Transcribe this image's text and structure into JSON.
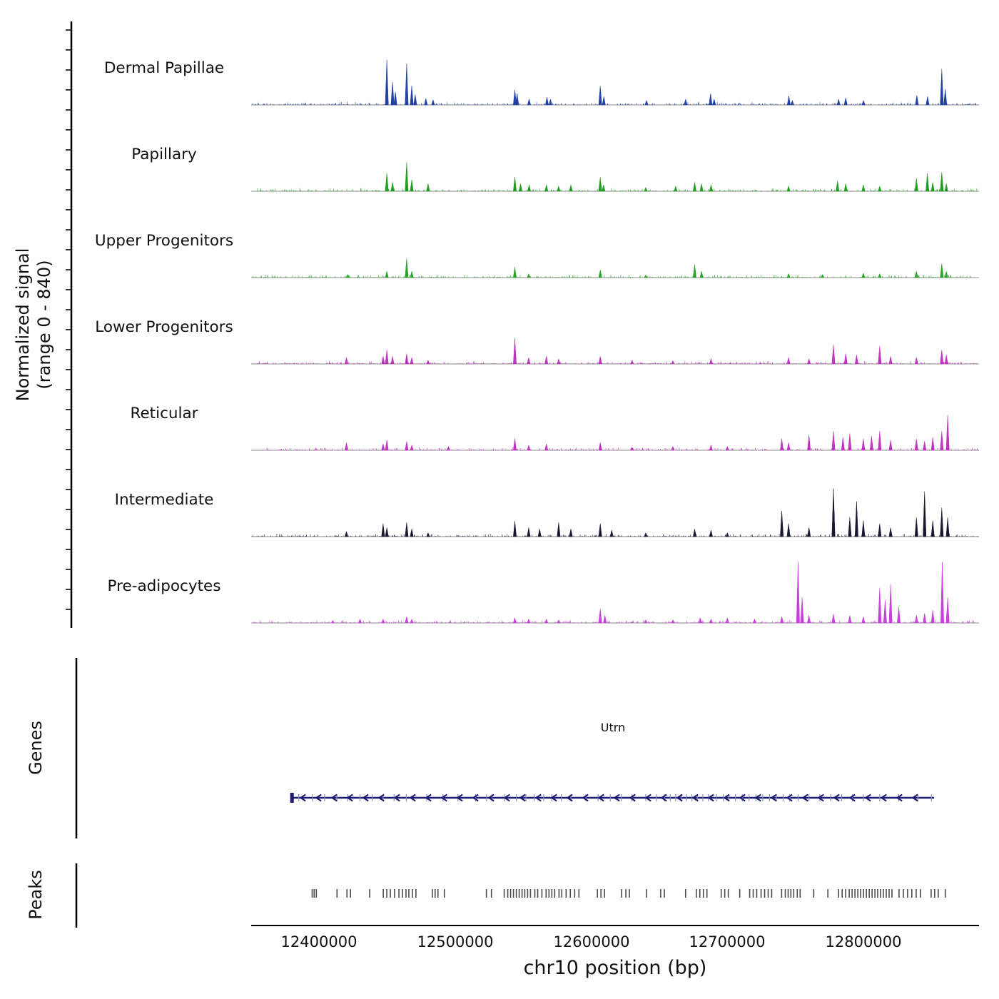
{
  "chart_data": {
    "type": "area",
    "subtype": "genome-browser-signal-tracks",
    "x_axis": {
      "label": "chr10 position (bp)",
      "min": 12350000,
      "max": 12885000,
      "ticks": [
        {
          "value": 12400000,
          "label": "12400000"
        },
        {
          "value": 12500000,
          "label": "12500000"
        },
        {
          "value": 12600000,
          "label": "12600000"
        },
        {
          "value": 12700000,
          "label": "12700000"
        },
        {
          "value": 12800000,
          "label": "12800000"
        }
      ]
    },
    "y_axis": {
      "label_line1": "Normalized signal",
      "label_line2": "(range 0 - 840)",
      "range": [
        0,
        840
      ]
    },
    "tracks": [
      {
        "label": "Dermal Papillae",
        "color": "#2141a5",
        "peaks": [
          [
            12449700,
            590
          ],
          [
            12453900,
            300
          ],
          [
            12456000,
            170
          ],
          [
            12464300,
            540
          ],
          [
            12468000,
            250
          ],
          [
            12470600,
            135
          ],
          [
            12478400,
            84
          ],
          [
            12483700,
            67
          ],
          [
            12543800,
            200
          ],
          [
            12545500,
            150
          ],
          [
            12554300,
            76
          ],
          [
            12567400,
            100
          ],
          [
            12570000,
            76
          ],
          [
            12606600,
            250
          ],
          [
            12609200,
            110
          ],
          [
            12640600,
            59
          ],
          [
            12669300,
            76
          ],
          [
            12687700,
            150
          ],
          [
            12690300,
            76
          ],
          [
            12745200,
            118
          ],
          [
            12747800,
            59
          ],
          [
            12781800,
            76
          ],
          [
            12787000,
            92
          ],
          [
            12800100,
            59
          ],
          [
            12839300,
            126
          ],
          [
            12847200,
            110
          ],
          [
            12857600,
            470
          ],
          [
            12860200,
            210
          ]
        ]
      },
      {
        "label": "Papillary",
        "color": "#1e9e1e",
        "peaks": [
          [
            12449700,
            235
          ],
          [
            12453900,
            118
          ],
          [
            12464300,
            380
          ],
          [
            12468000,
            150
          ],
          [
            12480000,
            100
          ],
          [
            12543800,
            185
          ],
          [
            12548000,
            100
          ],
          [
            12554300,
            84
          ],
          [
            12567000,
            84
          ],
          [
            12576000,
            67
          ],
          [
            12585000,
            84
          ],
          [
            12606600,
            185
          ],
          [
            12609000,
            84
          ],
          [
            12640000,
            50
          ],
          [
            12662000,
            67
          ],
          [
            12676000,
            118
          ],
          [
            12681000,
            100
          ],
          [
            12688000,
            84
          ],
          [
            12745000,
            67
          ],
          [
            12781000,
            135
          ],
          [
            12787000,
            100
          ],
          [
            12800000,
            84
          ],
          [
            12812000,
            67
          ],
          [
            12839000,
            170
          ],
          [
            12847000,
            235
          ],
          [
            12851000,
            118
          ],
          [
            12857600,
            250
          ],
          [
            12861000,
            100
          ]
        ]
      },
      {
        "label": "Upper Progenitors",
        "color": "#27a427",
        "peaks": [
          [
            12421000,
            42
          ],
          [
            12449700,
            84
          ],
          [
            12464300,
            250
          ],
          [
            12468000,
            84
          ],
          [
            12543800,
            135
          ],
          [
            12554000,
            50
          ],
          [
            12606600,
            100
          ],
          [
            12640000,
            34
          ],
          [
            12676000,
            170
          ],
          [
            12681000,
            84
          ],
          [
            12745000,
            50
          ],
          [
            12770000,
            42
          ],
          [
            12800000,
            59
          ],
          [
            12812000,
            50
          ],
          [
            12839000,
            84
          ],
          [
            12857600,
            185
          ],
          [
            12861000,
            84
          ]
        ]
      },
      {
        "label": "Lower Progenitors",
        "color": "#c233c2",
        "peaks": [
          [
            12420000,
            84
          ],
          [
            12447000,
            100
          ],
          [
            12449700,
            185
          ],
          [
            12453900,
            100
          ],
          [
            12464300,
            135
          ],
          [
            12468000,
            84
          ],
          [
            12480000,
            50
          ],
          [
            12543800,
            335
          ],
          [
            12554000,
            84
          ],
          [
            12567000,
            100
          ],
          [
            12576000,
            67
          ],
          [
            12606600,
            100
          ],
          [
            12630000,
            50
          ],
          [
            12660000,
            42
          ],
          [
            12688000,
            67
          ],
          [
            12745000,
            84
          ],
          [
            12760000,
            67
          ],
          [
            12778000,
            250
          ],
          [
            12787000,
            135
          ],
          [
            12795000,
            118
          ],
          [
            12812000,
            235
          ],
          [
            12820000,
            100
          ],
          [
            12839000,
            84
          ],
          [
            12857600,
            185
          ],
          [
            12861000,
            118
          ]
        ]
      },
      {
        "label": "Reticular",
        "color": "#c233c2",
        "peaks": [
          [
            12420000,
            100
          ],
          [
            12447000,
            84
          ],
          [
            12449700,
            135
          ],
          [
            12464300,
            118
          ],
          [
            12468000,
            67
          ],
          [
            12495000,
            50
          ],
          [
            12543800,
            150
          ],
          [
            12554000,
            67
          ],
          [
            12567000,
            84
          ],
          [
            12606600,
            100
          ],
          [
            12630000,
            42
          ],
          [
            12660000,
            50
          ],
          [
            12688000,
            67
          ],
          [
            12700000,
            50
          ],
          [
            12740000,
            150
          ],
          [
            12745000,
            100
          ],
          [
            12760000,
            200
          ],
          [
            12778000,
            250
          ],
          [
            12785000,
            170
          ],
          [
            12790000,
            220
          ],
          [
            12800000,
            150
          ],
          [
            12806000,
            185
          ],
          [
            12812000,
            250
          ],
          [
            12820000,
            135
          ],
          [
            12839000,
            150
          ],
          [
            12845000,
            118
          ],
          [
            12851000,
            170
          ],
          [
            12857600,
            250
          ],
          [
            12862000,
            460
          ]
        ]
      },
      {
        "label": "Intermediate",
        "color": "#17172f",
        "peaks": [
          [
            12420000,
            67
          ],
          [
            12447000,
            170
          ],
          [
            12449700,
            118
          ],
          [
            12464300,
            185
          ],
          [
            12468000,
            100
          ],
          [
            12480000,
            50
          ],
          [
            12543800,
            200
          ],
          [
            12554000,
            118
          ],
          [
            12562000,
            100
          ],
          [
            12576000,
            185
          ],
          [
            12585000,
            100
          ],
          [
            12606600,
            170
          ],
          [
            12615000,
            84
          ],
          [
            12640000,
            50
          ],
          [
            12676000,
            100
          ],
          [
            12688000,
            84
          ],
          [
            12700000,
            50
          ],
          [
            12740000,
            335
          ],
          [
            12745000,
            170
          ],
          [
            12760000,
            118
          ],
          [
            12778000,
            630
          ],
          [
            12790000,
            250
          ],
          [
            12795000,
            460
          ],
          [
            12800000,
            210
          ],
          [
            12812000,
            170
          ],
          [
            12820000,
            118
          ],
          [
            12839000,
            250
          ],
          [
            12845000,
            590
          ],
          [
            12851000,
            210
          ],
          [
            12857600,
            380
          ],
          [
            12862000,
            250
          ]
        ]
      },
      {
        "label": "Pre-adipocytes",
        "color": "#c93fdd",
        "peaks": [
          [
            12410000,
            34
          ],
          [
            12430000,
            50
          ],
          [
            12447000,
            50
          ],
          [
            12464300,
            84
          ],
          [
            12468000,
            50
          ],
          [
            12543800,
            67
          ],
          [
            12554000,
            50
          ],
          [
            12567000,
            50
          ],
          [
            12576000,
            42
          ],
          [
            12606600,
            185
          ],
          [
            12610000,
            100
          ],
          [
            12640000,
            42
          ],
          [
            12660000,
            42
          ],
          [
            12680000,
            67
          ],
          [
            12688000,
            50
          ],
          [
            12700000,
            67
          ],
          [
            12720000,
            50
          ],
          [
            12740000,
            84
          ],
          [
            12752000,
            800
          ],
          [
            12755000,
            335
          ],
          [
            12760000,
            100
          ],
          [
            12778000,
            118
          ],
          [
            12790000,
            100
          ],
          [
            12800000,
            84
          ],
          [
            12812000,
            460
          ],
          [
            12816000,
            295
          ],
          [
            12820000,
            505
          ],
          [
            12826000,
            210
          ],
          [
            12839000,
            100
          ],
          [
            12845000,
            126
          ],
          [
            12851000,
            170
          ],
          [
            12858000,
            800
          ],
          [
            12862000,
            335
          ]
        ]
      }
    ],
    "gene_track": {
      "section_label": "Genes",
      "genes": [
        {
          "name": "Utrn",
          "start": 12380000,
          "end": 12852000,
          "strand": "-",
          "color": "#1b1b70",
          "exons": [
            12385000,
            12395000,
            12404000,
            12413000,
            12421000,
            12430000,
            12439000,
            12447000,
            12455000,
            12464000,
            12479000,
            12491000,
            12502000,
            12515000,
            12523000,
            12527000,
            12536000,
            12545000,
            12552000,
            12558000,
            12565000,
            12571000,
            12578000,
            12585000,
            12596000,
            12605000,
            12614000,
            12622000,
            12630000,
            12640000,
            12648000,
            12654000,
            12658000,
            12662000,
            12666000,
            12670000,
            12674000,
            12678000,
            12682000,
            12686000,
            12692000,
            12697000,
            12701000,
            12706000,
            12711000,
            12716000,
            12721000,
            12726000,
            12731000,
            12736000,
            12741000,
            12746000,
            12752000,
            12760000,
            12768000,
            12776000,
            12784000,
            12792000,
            12800000,
            12812000,
            12826000,
            12840000,
            12850000
          ]
        }
      ]
    },
    "peaks_track": {
      "section_label": "Peaks",
      "color": "#4a4a4a",
      "positions": [
        12394800,
        12396300,
        12397900,
        12413100,
        12420400,
        12423000,
        12437100,
        12447100,
        12449700,
        12452300,
        12455400,
        12458600,
        12461200,
        12463800,
        12465900,
        12468500,
        12471100,
        12483200,
        12485200,
        12487300,
        12492000,
        12522900,
        12526600,
        12536000,
        12538600,
        12540700,
        12542800,
        12544900,
        12547000,
        12549100,
        12551100,
        12553200,
        12555300,
        12558500,
        12560600,
        12563700,
        12566800,
        12568900,
        12571000,
        12573100,
        12576300,
        12578300,
        12581500,
        12584600,
        12587800,
        12590900,
        12604500,
        12607100,
        12609700,
        12622300,
        12625400,
        12628000,
        12640600,
        12651000,
        12653700,
        12669300,
        12677200,
        12679800,
        12682400,
        12685000,
        12695500,
        12698100,
        12700700,
        12709100,
        12716400,
        12719000,
        12721600,
        12724800,
        12727400,
        12730000,
        12732600,
        12739900,
        12742600,
        12744700,
        12746700,
        12748800,
        12751400,
        12753500,
        12763500,
        12773900,
        12781800,
        12784400,
        12787000,
        12789600,
        12791700,
        12793800,
        12795900,
        12798000,
        12800100,
        12802200,
        12804300,
        12806400,
        12808500,
        12810500,
        12812600,
        12814700,
        12816800,
        12818900,
        12821000,
        12826200,
        12829400,
        12832500,
        12835600,
        12838800,
        12841900,
        12849800,
        12852400,
        12855000,
        12860200
      ]
    }
  }
}
